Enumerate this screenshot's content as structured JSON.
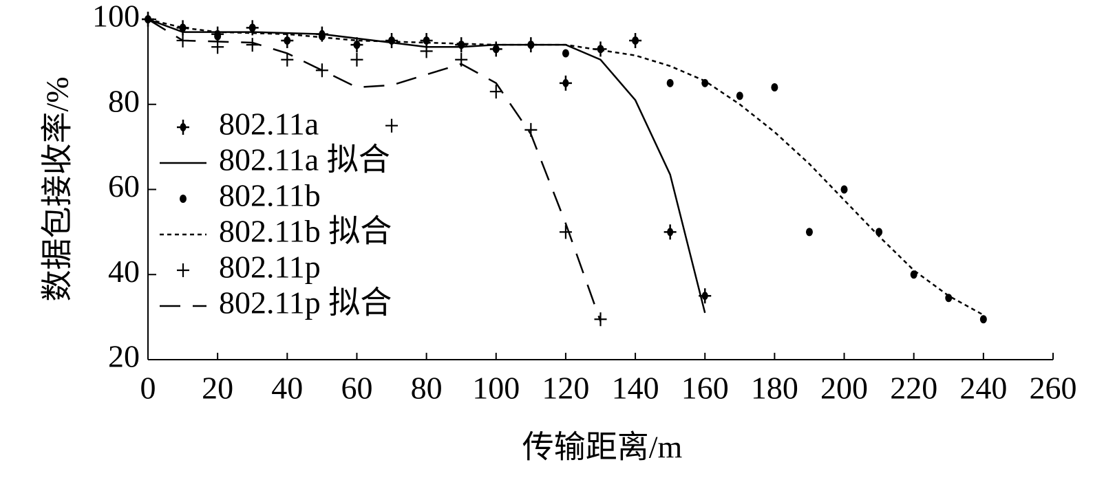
{
  "chart_data": {
    "type": "line",
    "x_label": "传输距离/m",
    "y_label": "数据包接收率/%",
    "xlim": [
      0,
      260
    ],
    "xticks": [
      0,
      20,
      40,
      60,
      80,
      100,
      120,
      140,
      160,
      180,
      200,
      220,
      240,
      260
    ],
    "ylim": [
      20,
      100
    ],
    "yticks": [
      20,
      40,
      60,
      80,
      100
    ],
    "legend": "upper left",
    "series": [
      {
        "name": "802.11a",
        "color": "#000000",
        "marker": "star",
        "line": "none",
        "x": [
          0,
          10,
          20,
          30,
          40,
          50,
          60,
          70,
          80,
          90,
          100,
          110,
          120,
          130,
          140,
          150,
          160
        ],
        "values": [
          100,
          98,
          96.5,
          98,
          95,
          96.5,
          94,
          95,
          95,
          94,
          93,
          94,
          85,
          93,
          95,
          50,
          35
        ]
      },
      {
        "name": "802.11a 拟合",
        "color": "#000000",
        "marker": "none",
        "line": "solid",
        "x": [
          0,
          10,
          30,
          50,
          60,
          70,
          80,
          90,
          100,
          120,
          130,
          140,
          150,
          160
        ],
        "values": [
          100,
          97,
          97,
          96.5,
          95.5,
          94.5,
          93.5,
          93.5,
          94,
          94,
          90.5,
          81,
          63.5,
          31
        ]
      },
      {
        "name": "802.11b",
        "color": "#000000",
        "marker": "dot",
        "line": "none",
        "x": [
          0,
          10,
          20,
          30,
          40,
          50,
          60,
          70,
          80,
          90,
          100,
          110,
          120,
          130,
          140,
          150,
          160,
          170,
          180,
          190,
          200,
          210,
          220,
          230,
          240
        ],
        "values": [
          100,
          98,
          96,
          98,
          95,
          96,
          94,
          95,
          95,
          94,
          93,
          94,
          92,
          93,
          95,
          85,
          85,
          82,
          84,
          50,
          60,
          50,
          40,
          34.5,
          29.5
        ]
      },
      {
        "name": "802.11b 拟合",
        "color": "#000000",
        "marker": "none",
        "line": "dotted",
        "x": [
          0,
          10,
          20,
          40,
          60,
          80,
          100,
          120,
          140,
          150,
          160,
          170,
          180,
          190,
          200,
          210,
          220,
          230,
          240
        ],
        "values": [
          100,
          98,
          97,
          96.5,
          95,
          94.5,
          94,
          94,
          91.5,
          89,
          85.5,
          80,
          73.5,
          66,
          57.5,
          49,
          41,
          35,
          30.5
        ]
      },
      {
        "name": "802.11p",
        "color": "#000000",
        "marker": "plus",
        "line": "none",
        "x": [
          0,
          10,
          20,
          30,
          40,
          50,
          60,
          70,
          80,
          90,
          100,
          110,
          120,
          130
        ],
        "values": [
          100,
          95,
          93.5,
          94,
          90.5,
          88,
          90.5,
          75,
          92.5,
          90.5,
          83,
          74,
          50,
          29.5
        ]
      },
      {
        "name": "802.11p 拟合",
        "color": "#000000",
        "marker": "none",
        "line": "dashed",
        "x": [
          0,
          10,
          30,
          40,
          50,
          60,
          70,
          80,
          90,
          100,
          110,
          120,
          130
        ],
        "values": [
          100,
          95,
          94.5,
          92,
          88,
          84,
          84.5,
          87,
          89.5,
          85,
          73,
          52,
          29
        ]
      }
    ]
  }
}
